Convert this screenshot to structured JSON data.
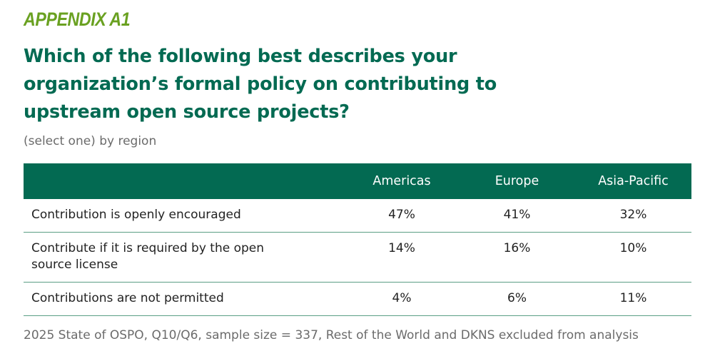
{
  "header": {
    "appendix": "APPENDIX A1",
    "question": "Which of the following best describes your organization’s formal policy on contributing to upstream open source projects?",
    "subtitle": "(select one) by region"
  },
  "table": {
    "columns": [
      "",
      "Americas",
      "Europe",
      "Asia-Pacific"
    ],
    "rows": [
      {
        "label": "Contribution is openly encouraged",
        "values": [
          "47%",
          "41%",
          "32%"
        ]
      },
      {
        "label": "Contribute if it is required by the open source license",
        "values": [
          "14%",
          "16%",
          "10%"
        ]
      },
      {
        "label": "Contributions are not permitted",
        "values": [
          "4%",
          "6%",
          "11%"
        ]
      }
    ]
  },
  "footnote": "2025 State of OSPO, Q10/Q6, sample size = 337, Rest of the World and DKNS excluded from analysis",
  "colors": {
    "accent_green": "#6aa121",
    "header_teal": "#036a52",
    "row_rule": "#5a9e84",
    "muted_text": "#6b6b6b"
  }
}
